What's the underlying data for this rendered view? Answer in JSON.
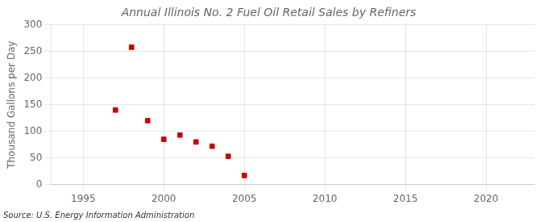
{
  "chart_data": {
    "type": "scatter",
    "title": "Annual Illinois No. 2 Fuel Oil Retail Sales by Refiners",
    "ylabel": "Thousand Gallons per Day",
    "annotations": [
      "Source: U.S. Energy Information Administration"
    ],
    "x": [
      1997,
      1998,
      1999,
      2000,
      2001,
      2002,
      2003,
      2004,
      2005
    ],
    "values": [
      140,
      258,
      120,
      85,
      93,
      80,
      72,
      53,
      17
    ],
    "color": "#cc0000",
    "marker": "square",
    "xlim": [
      1993,
      2023
    ],
    "ylim": [
      0,
      300
    ],
    "xticks": [
      1995,
      2000,
      2005,
      2010,
      2015,
      2020
    ],
    "yticks": [
      0,
      50,
      100,
      150,
      200,
      250,
      300
    ],
    "grid": true
  }
}
